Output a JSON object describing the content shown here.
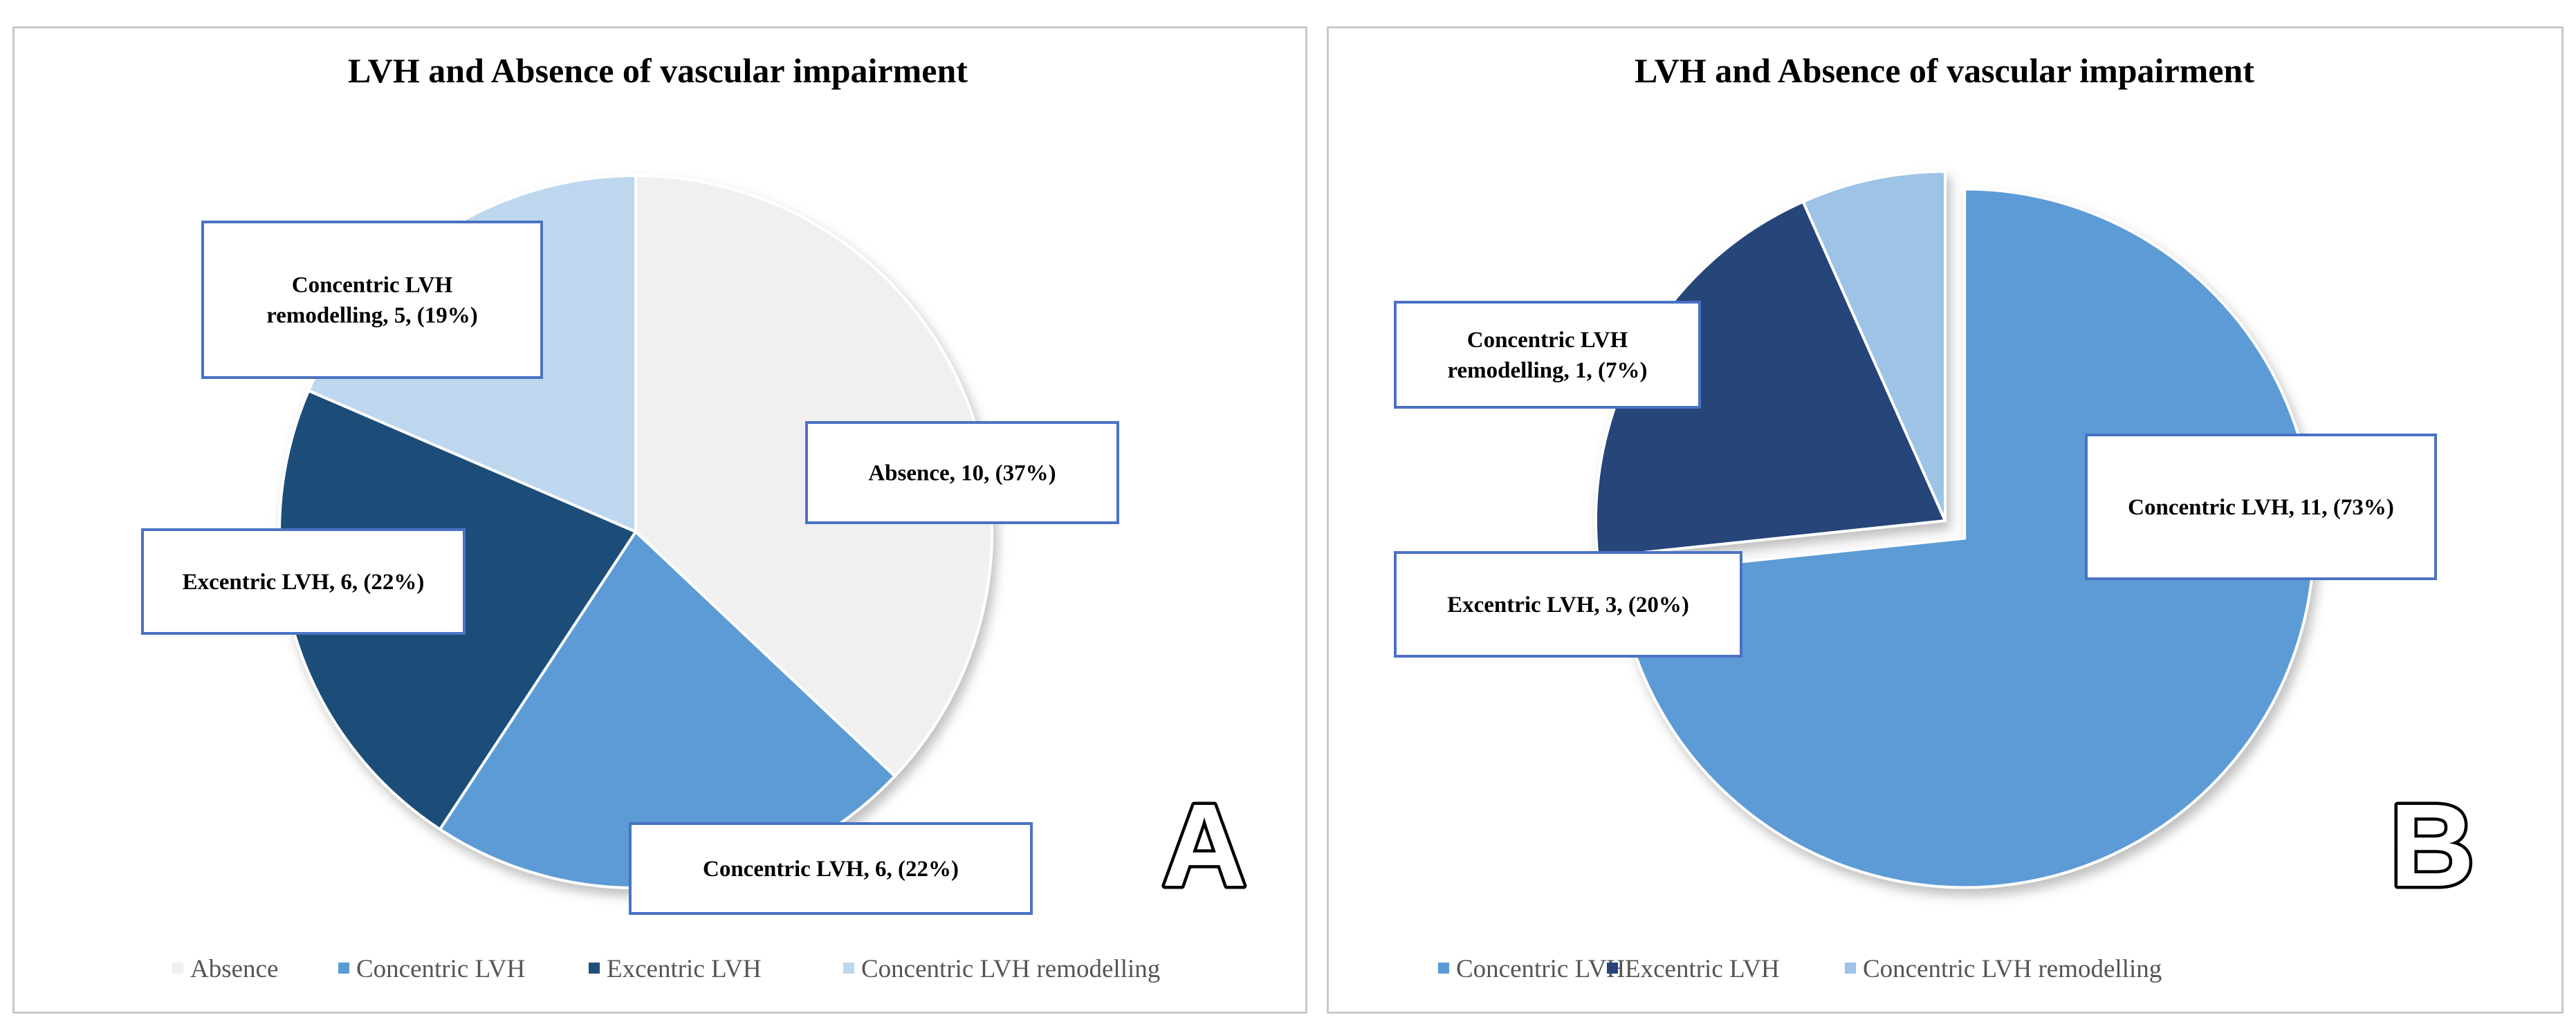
{
  "chart_data": [
    {
      "type": "pie",
      "panel_label": "A",
      "title": "LVH and Absence of vascular impairment",
      "categories": [
        "Absence",
        "Concentric LVH",
        "Excentric LVH",
        "Concentric LVH remodelling"
      ],
      "values": [
        10,
        6,
        6,
        5
      ],
      "percents": [
        "37%",
        "22%",
        "22%",
        "19%"
      ],
      "colors": [
        "#f0f0f0",
        "#5b9bd5",
        "#1f4e79",
        "#bdd7ee"
      ],
      "labels": [
        [
          "Absence, 10, (37%)"
        ],
        [
          "Concentric LVH, 6, (22%)"
        ],
        [
          "Excentric LVH, 6, (22%)"
        ],
        [
          "Concentric LVH",
          "remodelling, 5, (19%)"
        ]
      ],
      "legend": [
        "Absence",
        "Concentric LVH",
        "Excentric LVH",
        "Concentric LVH remodelling"
      ],
      "legend_position": "bottom"
    },
    {
      "type": "pie",
      "panel_label": "B",
      "title": "LVH and Absence of vascular impairment",
      "categories": [
        "Concentric LVH",
        "Excentric LVH",
        "Concentric LVH remodelling"
      ],
      "values": [
        11,
        3,
        1
      ],
      "percents": [
        "73%",
        "20%",
        "7%"
      ],
      "colors": [
        "#5b9bd5",
        "#264478",
        "#9dc3e6"
      ],
      "labels": [
        [
          "Concentric LVH, 11, (73%)"
        ],
        [
          "Excentric LVH, 3, (20%)"
        ],
        [
          "Concentric LVH",
          "remodelling, 1, (7%)"
        ]
      ],
      "legend": [
        "Concentric LVH",
        "Excentric LVH",
        "Concentric LVH remodelling"
      ],
      "legend_position": "bottom"
    }
  ]
}
